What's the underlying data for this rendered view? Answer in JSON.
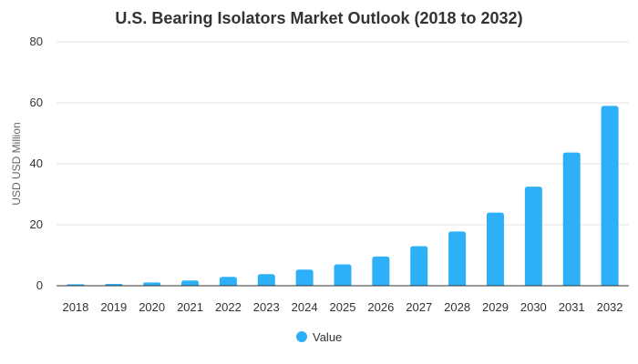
{
  "chart_data": {
    "type": "bar",
    "title": "U.S. Bearing Isolators Market Outlook (2018 to 2032)",
    "xlabel": "",
    "ylabel": "USD USD Million",
    "categories": [
      "2018",
      "2019",
      "2020",
      "2021",
      "2022",
      "2023",
      "2024",
      "2025",
      "2026",
      "2027",
      "2028",
      "2029",
      "2030",
      "2031",
      "2032"
    ],
    "series": [
      {
        "name": "Value",
        "values": [
          0.5,
          0.6,
          1.1,
          1.7,
          2.9,
          3.8,
          5.3,
          7.0,
          9.6,
          13.0,
          17.8,
          24.0,
          32.5,
          43.7,
          59.0
        ]
      }
    ],
    "ylim": [
      0,
      80
    ],
    "yticks": [
      0,
      20,
      40,
      60,
      80
    ],
    "grid": true,
    "legend_position": "bottom-center",
    "colors": {
      "bar": "#2eb0f8",
      "text": "#333333",
      "grid": "#e6e6e6"
    }
  }
}
